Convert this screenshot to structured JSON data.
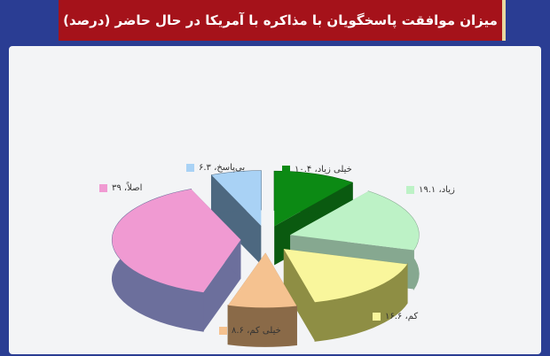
{
  "chart_data": {
    "type": "pie",
    "title": "میزان موافقت پاسخگویان با مذاکره با آمریکا در حال حاضر (درصد)",
    "style": "3d-exploded",
    "slices": [
      {
        "label": "خیلی زیاد",
        "value": 10.4,
        "legend": "خیلی زیاد، ۱۰.۴",
        "color": "#0c8a14",
        "side": "#0a5a10"
      },
      {
        "label": "زیاد",
        "value": 19.1,
        "legend": "زیاد، ۱۹.۱",
        "color": "#bdf2c6",
        "side": "#86a890"
      },
      {
        "label": "کم",
        "value": 16.6,
        "legend": "کم، ۱۶.۶",
        "color": "#f9f69c",
        "side": "#8e8e44"
      },
      {
        "label": "خیلی کم",
        "value": 8.6,
        "legend": "خیلی کم، ۸.۶",
        "color": "#f5c290",
        "side": "#8a6a48"
      },
      {
        "label": "اصلاً",
        "value": 39,
        "legend": "اصلاً، ۳۹",
        "color": "#f09ad2",
        "side": "#6c6f9c"
      },
      {
        "label": "بی‌پاسخ",
        "value": 6.3,
        "legend": "بی‌پاسخ، ۶.۳",
        "color": "#a9d2f5",
        "side": "#4d6880"
      }
    ]
  }
}
